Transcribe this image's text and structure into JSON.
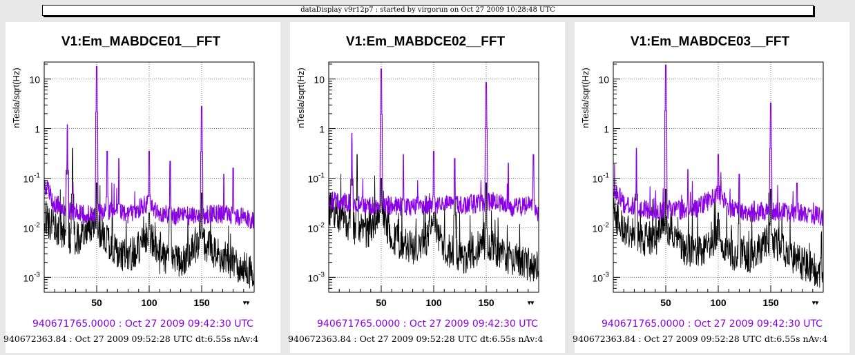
{
  "header": {
    "title": "dataDisplay v9r12p7 : started by virgorun on Oct 27 2009 10:28:48 UTC"
  },
  "panels": [
    {
      "ts_current": "940671765.0000 : Oct 27 2009 09:42:30 UTC",
      "ts_reference": "940672363.84 : Oct 27 2009 09:52:28 UTC dt:6.55s nAv:4"
    },
    {
      "ts_current": "940671765.0000 : Oct 27 2009 09:42:30 UTC",
      "ts_reference": "940672363.84 : Oct 27 2009 09:52:28 UTC dt:6.55s nAv:4"
    },
    {
      "ts_current": "940671765.0000 : Oct 27 2009 09:42:30 UTC",
      "ts_reference": "940672363.84 : Oct 27 2009 09:52:28 UTC dt:6.55s nAv:4"
    }
  ],
  "colors": {
    "current": "#8a00e6",
    "reference": "#000000",
    "background": "#ffffff",
    "page": "#e8e8e8"
  },
  "chart_data": [
    {
      "type": "line",
      "title": "V1:Em_MABDCE01__FFT",
      "ylabel": "nTesla/sqrt(Hz)",
      "xlabel": "",
      "xlim": [
        0,
        200
      ],
      "ylim": [
        0.0005,
        22
      ],
      "yscale": "log",
      "grid": true,
      "xticks": [
        50,
        100,
        150
      ],
      "yticks": [
        {
          "value": 0.001,
          "base": "10",
          "exp": "-3"
        },
        {
          "value": 0.01,
          "base": "10",
          "exp": "-2"
        },
        {
          "value": 0.1,
          "base": "10",
          "exp": "-1"
        },
        {
          "value": 1,
          "base": "1",
          "exp": ""
        },
        {
          "value": 10,
          "base": "10",
          "exp": ""
        }
      ],
      "series": [
        {
          "color": "#8a00e6",
          "noise_floor": [
            [
              0,
              0.08
            ],
            [
              10,
              0.03
            ],
            [
              25,
              0.022
            ],
            [
              40,
              0.018
            ],
            [
              50,
              0.02
            ],
            [
              60,
              0.022
            ],
            [
              80,
              0.018
            ],
            [
              95,
              0.028
            ],
            [
              100,
              0.032
            ],
            [
              110,
              0.02
            ],
            [
              130,
              0.017
            ],
            [
              150,
              0.018
            ],
            [
              170,
              0.019
            ],
            [
              190,
              0.016
            ],
            [
              200,
              0.014
            ]
          ],
          "peaks": [
            [
              22,
              1.2
            ],
            [
              50,
              18
            ],
            [
              60,
              0.35
            ],
            [
              71,
              0.25
            ],
            [
              100,
              0.35
            ],
            [
              120,
              0.22
            ],
            [
              150,
              2.8
            ],
            [
              171,
              0.12
            ],
            [
              180,
              0.16
            ]
          ]
        },
        {
          "color": "#000000",
          "noise_floor": [
            [
              0,
              0.012
            ],
            [
              10,
              0.008
            ],
            [
              25,
              0.005
            ],
            [
              40,
              0.005
            ],
            [
              48,
              0.009
            ],
            [
              55,
              0.006
            ],
            [
              65,
              0.003
            ],
            [
              80,
              0.002
            ],
            [
              95,
              0.004
            ],
            [
              100,
              0.006
            ],
            [
              110,
              0.002
            ],
            [
              130,
              0.0015
            ],
            [
              150,
              0.004
            ],
            [
              170,
              0.002
            ],
            [
              190,
              0.0012
            ],
            [
              200,
              0.0009
            ]
          ],
          "peaks": [
            [
              22,
              1.0
            ],
            [
              27,
              0.4
            ],
            [
              50,
              0.08
            ],
            [
              100,
              0.02
            ],
            [
              120,
              0.2
            ],
            [
              150,
              0.05
            ]
          ]
        }
      ]
    },
    {
      "type": "line",
      "title": "V1:Em_MABDCE02__FFT",
      "ylabel": "nTesla/sqrt(Hz)",
      "xlabel": "",
      "xlim": [
        0,
        200
      ],
      "ylim": [
        0.0005,
        22
      ],
      "yscale": "log",
      "grid": true,
      "xticks": [
        50,
        100,
        150
      ],
      "yticks": [
        {
          "value": 0.001,
          "base": "10",
          "exp": "-3"
        },
        {
          "value": 0.01,
          "base": "10",
          "exp": "-2"
        },
        {
          "value": 0.1,
          "base": "10",
          "exp": "-1"
        },
        {
          "value": 1,
          "base": "1",
          "exp": ""
        },
        {
          "value": 10,
          "base": "10",
          "exp": ""
        }
      ],
      "series": [
        {
          "color": "#8a00e6",
          "noise_floor": [
            [
              0,
              0.035
            ],
            [
              20,
              0.032
            ],
            [
              40,
              0.028
            ],
            [
              50,
              0.03
            ],
            [
              60,
              0.028
            ],
            [
              80,
              0.027
            ],
            [
              100,
              0.03
            ],
            [
              120,
              0.028
            ],
            [
              140,
              0.03
            ],
            [
              160,
              0.035
            ],
            [
              175,
              0.025
            ],
            [
              190,
              0.028
            ],
            [
              200,
              0.02
            ]
          ],
          "peaks": [
            [
              22,
              0.8
            ],
            [
              50,
              16
            ],
            [
              71,
              0.3
            ],
            [
              100,
              0.35
            ],
            [
              120,
              0.25
            ],
            [
              150,
              8.5
            ],
            [
              171,
              0.2
            ],
            [
              195,
              0.3
            ]
          ]
        },
        {
          "color": "#000000",
          "noise_floor": [
            [
              0,
              0.02
            ],
            [
              10,
              0.012
            ],
            [
              25,
              0.008
            ],
            [
              40,
              0.006
            ],
            [
              48,
              0.02
            ],
            [
              55,
              0.008
            ],
            [
              65,
              0.004
            ],
            [
              80,
              0.003
            ],
            [
              95,
              0.005
            ],
            [
              100,
              0.008
            ],
            [
              110,
              0.003
            ],
            [
              130,
              0.002
            ],
            [
              150,
              0.004
            ],
            [
              170,
              0.002
            ],
            [
              190,
              0.0015
            ],
            [
              200,
              0.0012
            ]
          ],
          "peaks": [
            [
              22,
              0.6
            ],
            [
              27,
              0.3
            ],
            [
              50,
              0.1
            ],
            [
              100,
              0.02
            ],
            [
              120,
              0.15
            ],
            [
              150,
              0.08
            ]
          ]
        }
      ]
    },
    {
      "type": "line",
      "title": "V1:Em_MABDCE03__FFT",
      "ylabel": "nTesla/sqrt(Hz)",
      "xlabel": "",
      "xlim": [
        0,
        200
      ],
      "ylim": [
        0.0005,
        22
      ],
      "yscale": "log",
      "grid": true,
      "xticks": [
        50,
        100,
        150
      ],
      "yticks": [
        {
          "value": 0.001,
          "base": "10",
          "exp": "-3"
        },
        {
          "value": 0.01,
          "base": "10",
          "exp": "-2"
        },
        {
          "value": 0.1,
          "base": "10",
          "exp": "-1"
        },
        {
          "value": 1,
          "base": "1",
          "exp": ""
        },
        {
          "value": 10,
          "base": "10",
          "exp": ""
        }
      ],
      "series": [
        {
          "color": "#8a00e6",
          "noise_floor": [
            [
              0,
              0.07
            ],
            [
              10,
              0.03
            ],
            [
              25,
              0.025
            ],
            [
              40,
              0.02
            ],
            [
              50,
              0.025
            ],
            [
              60,
              0.022
            ],
            [
              80,
              0.025
            ],
            [
              95,
              0.04
            ],
            [
              100,
              0.05
            ],
            [
              110,
              0.025
            ],
            [
              130,
              0.02
            ],
            [
              150,
              0.022
            ],
            [
              170,
              0.02
            ],
            [
              190,
              0.018
            ],
            [
              200,
              0.017
            ]
          ],
          "peaks": [
            [
              22,
              0.4
            ],
            [
              50,
              19
            ],
            [
              71,
              0.15
            ],
            [
              100,
              0.3
            ],
            [
              120,
              0.12
            ],
            [
              150,
              3.3
            ],
            [
              175,
              0.08
            ]
          ]
        },
        {
          "color": "#000000",
          "noise_floor": [
            [
              0,
              0.015
            ],
            [
              10,
              0.008
            ],
            [
              25,
              0.005
            ],
            [
              40,
              0.004
            ],
            [
              48,
              0.012
            ],
            [
              55,
              0.006
            ],
            [
              65,
              0.003
            ],
            [
              80,
              0.0025
            ],
            [
              95,
              0.004
            ],
            [
              100,
              0.006
            ],
            [
              110,
              0.0025
            ],
            [
              130,
              0.002
            ],
            [
              150,
              0.005
            ],
            [
              170,
              0.002
            ],
            [
              190,
              0.0012
            ],
            [
              200,
              0.001
            ]
          ],
          "peaks": [
            [
              22,
              0.3
            ],
            [
              50,
              0.06
            ],
            [
              100,
              0.02
            ],
            [
              120,
              0.1
            ],
            [
              150,
              0.06
            ]
          ]
        }
      ]
    }
  ]
}
